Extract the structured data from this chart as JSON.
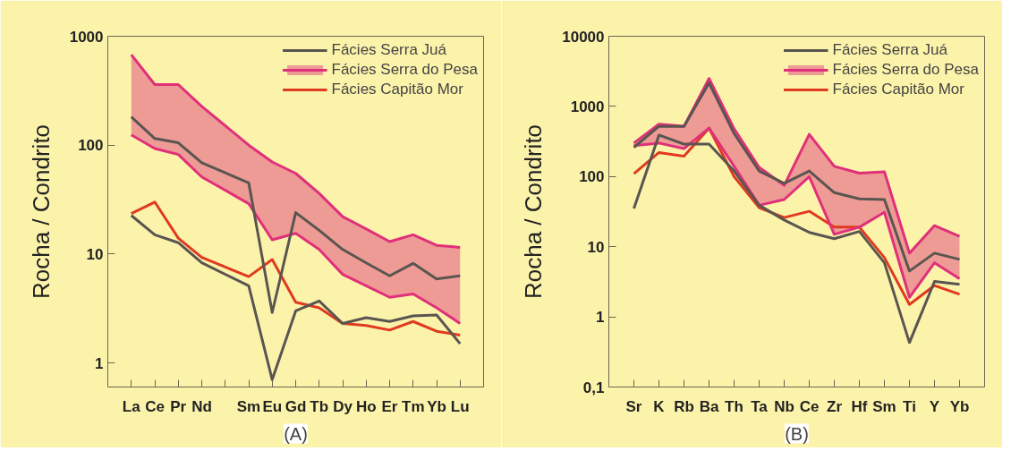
{
  "chart_data": [
    {
      "type": "line",
      "ylabel": "Rocha / Condrito",
      "log": true,
      "ylim": [
        0.6,
        1000
      ],
      "yticks": [
        1,
        10,
        100,
        1000
      ],
      "legend": "top right",
      "grid": false,
      "categories": [
        "La",
        "Ce",
        "Pr",
        "Nd",
        null,
        "Sm",
        "Eu",
        "Gd",
        "Tb",
        "Dy",
        "Ho",
        "Er",
        "Tm",
        "Yb",
        "Lu"
      ],
      "annotations": [
        "(A)"
      ],
      "series": [
        {
          "name": "Fácies Serra Juá",
          "color": "#5a5550",
          "values": [
            182,
            115,
            105,
            69,
            null,
            45,
            2.9,
            24,
            16.5,
            11,
            8.3,
            6.3,
            8.2,
            5.9,
            6.3
          ]
        },
        {
          "color": "#5a5550",
          "values": [
            22.6,
            15,
            12.7,
            8.3,
            null,
            5.1,
            0.7,
            3.0,
            3.7,
            2.3,
            2.6,
            2.4,
            2.7,
            2.75,
            1.5
          ]
        },
        {
          "name": "Fácies Serra do Pesa",
          "color": "#e0307a",
          "values": [
            676,
            360,
            360,
            227,
            null,
            100,
            70,
            55,
            36,
            22,
            17,
            13,
            15,
            12,
            11.5
          ],
          "lower": [
            124,
            93,
            82,
            51,
            null,
            29,
            13.5,
            15.5,
            11,
            6.5,
            5.1,
            4.0,
            4.3,
            3.2,
            2.3
          ],
          "upper": [
            676,
            360,
            360,
            227,
            null,
            100,
            70,
            55,
            36,
            22,
            17,
            13,
            15,
            12,
            11.5
          ]
        },
        {
          "color": "#e0307a",
          "values": [
            124,
            93,
            82,
            51,
            null,
            29,
            13.5,
            15.5,
            11,
            6.5,
            5.1,
            4.0,
            4.3,
            3.2,
            2.3
          ]
        },
        {
          "name": "Fácies Capitão Mor",
          "color": "#e03a20",
          "values": [
            23.5,
            30,
            14,
            9.3,
            null,
            6.2,
            8.9,
            3.6,
            3.2,
            2.3,
            2.2,
            2.0,
            2.4,
            1.95,
            1.8
          ]
        }
      ]
    },
    {
      "type": "line",
      "ylabel": "Rocha / Condrito",
      "log": true,
      "ylim": [
        0.1,
        10000
      ],
      "yticks": [
        {
          "value": 0.1,
          "label": "0,1"
        },
        1,
        10,
        100,
        1000,
        10000
      ],
      "legend": "top right",
      "grid": false,
      "categories": [
        "Sr",
        "K",
        "Rb",
        "Ba",
        "Th",
        "Ta",
        "Nb",
        "Ce",
        "Zr",
        "Hf",
        "Sm",
        "Ti",
        "Y",
        "Yb"
      ],
      "annotations": [
        "(B)"
      ],
      "series": [
        {
          "name": "Fácies Serra Juá",
          "color": "#5a5550",
          "values": [
            260,
            520,
            520,
            2150,
            410,
            120,
            80,
            120,
            59,
            48,
            47,
            4.5,
            8.1,
            6.6
          ]
        },
        {
          "color": "#5a5550",
          "values": [
            35,
            390,
            290,
            290,
            120,
            39,
            24,
            16,
            13,
            16.5,
            5.9,
            0.43,
            3.2,
            2.9
          ]
        },
        {
          "name": "Fácies Serra do Pesa",
          "color": "#e0307a",
          "values": [
            300,
            560,
            520,
            2500,
            480,
            135,
            75,
            400,
            140,
            112,
            117,
            8.1,
            20,
            14
          ],
          "lower": [
            275,
            300,
            250,
            490,
            140,
            39,
            47,
            100,
            15,
            19,
            31,
            1.9,
            5.9,
            3.5
          ],
          "upper": [
            300,
            560,
            520,
            2500,
            480,
            135,
            75,
            400,
            140,
            112,
            117,
            8.1,
            20,
            14
          ]
        },
        {
          "color": "#e0307a",
          "values": [
            275,
            300,
            250,
            490,
            140,
            39,
            47,
            100,
            15,
            19,
            31,
            1.9,
            5.9,
            3.5
          ]
        },
        {
          "name": "Fácies Capitão Mor",
          "color": "#e03a20",
          "values": [
            110,
            220,
            195,
            490,
            100,
            36,
            26,
            32,
            19,
            19,
            7,
            1.5,
            2.8,
            2.1
          ]
        }
      ]
    }
  ]
}
